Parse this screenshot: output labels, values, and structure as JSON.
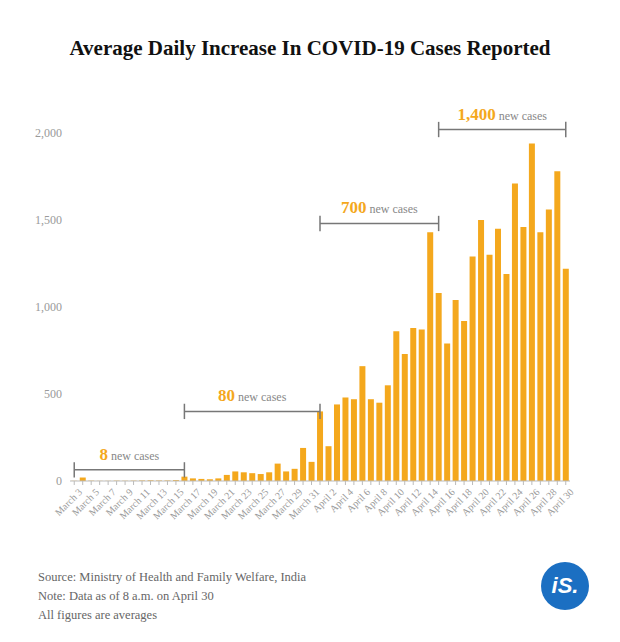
{
  "chart_data": {
    "type": "bar",
    "title": "Average Daily Increase In COVID-19 Cases Reported",
    "categories": [
      "March 3",
      null,
      "March 5",
      null,
      "March 7",
      null,
      "March 9",
      null,
      "March 11",
      null,
      "March 13",
      null,
      "March 15",
      null,
      "March 17",
      null,
      "March 19",
      null,
      "March 21",
      null,
      "March 23",
      null,
      "March 25",
      null,
      "March 27",
      null,
      "March 29",
      null,
      "March 31",
      null,
      "April 2",
      null,
      "April 4",
      null,
      "April 6",
      null,
      "April 8",
      null,
      "April 10",
      null,
      "April 12",
      null,
      "April 14",
      null,
      "April 16",
      null,
      "April 18",
      null,
      "April 20",
      null,
      "April 22",
      null,
      "April 24",
      null,
      "April 26",
      null,
      "April 28",
      null,
      "April 30"
    ],
    "values": [
      1,
      20,
      2,
      1,
      1,
      2,
      2,
      2,
      3,
      4,
      3,
      3,
      5,
      25,
      15,
      12,
      10,
      15,
      35,
      55,
      50,
      45,
      40,
      50,
      100,
      55,
      70,
      190,
      110,
      400,
      200,
      440,
      480,
      470,
      660,
      470,
      450,
      550,
      860,
      730,
      880,
      870,
      1430,
      1080,
      790,
      1040,
      920,
      1290,
      1500,
      1300,
      1450,
      1190,
      1710,
      1460,
      1940,
      1430,
      1560,
      1780,
      1220
    ],
    "color": "#f4a81d",
    "ylim": [
      0,
      2000
    ],
    "yticks": [
      0,
      500,
      {
        "value": 1000,
        "label": "1,000"
      },
      {
        "value": 1500,
        "label": "1,500"
      },
      {
        "value": 2000,
        "label": "2,000"
      }
    ],
    "grid": false,
    "annotations": [
      {
        "value": 8,
        "text": "new cases",
        "from": 0,
        "to": 13
      },
      {
        "value": 80,
        "text": "new cases",
        "from": 13,
        "to": 29
      },
      {
        "value": 700,
        "text": "new cases",
        "from": 29,
        "to": 43
      },
      {
        "value": 1400,
        "label": "1,400",
        "text": "new cases",
        "from": 43,
        "to": 58
      }
    ],
    "notes": [
      "Source: Ministry of Health and Family Welfare, India",
      "Note: Data as of 8 a.m. on April 30",
      "All figures are averages"
    ],
    "logo": "iS."
  }
}
